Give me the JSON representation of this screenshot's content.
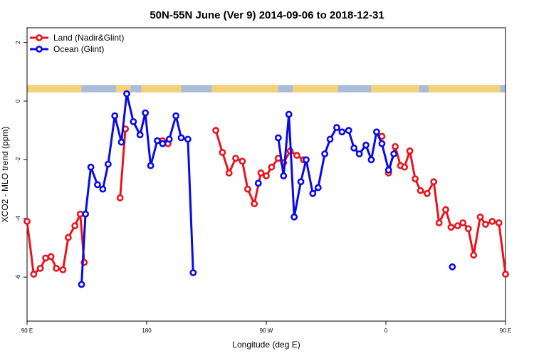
{
  "chart_data": {
    "type": "line",
    "title": "50N-55N June (Ver 9)   2014-09-06 to 2018-12-31",
    "xlabel": "Longitude (deg E)",
    "ylabel": "XCO2 - MLO trend (ppm)",
    "xlim": [
      90,
      450
    ],
    "ylim": [
      -7.5,
      2.5
    ],
    "x_ticks": [
      {
        "value": 90,
        "label": "90 E"
      },
      {
        "value": 180,
        "label": "180"
      },
      {
        "value": 270,
        "label": "90 W"
      },
      {
        "value": 360,
        "label": "0"
      },
      {
        "value": 450,
        "label": "90 E"
      },
      {
        "value": 540,
        "label": "180"
      }
    ],
    "y_ticks": [
      {
        "value": -6,
        "label": "-6"
      },
      {
        "value": -4,
        "label": "-4"
      },
      {
        "value": -2,
        "label": "-2"
      },
      {
        "value": 0,
        "label": "0"
      },
      {
        "value": 2,
        "label": "2"
      }
    ],
    "legend_position": "top-left",
    "land_ocean_strip": {
      "y_range": [
        0.3,
        0.55
      ],
      "land_color": "#f5d27a",
      "ocean_color": "#a9bdd9"
    },
    "series": [
      {
        "name": "Land (Nadir&Glint)",
        "color": "#e8141e",
        "segments": [
          [
            [
              90,
              -4.1
            ],
            [
              95,
              -5.9
            ],
            [
              100,
              -5.7
            ],
            [
              104,
              -5.35
            ],
            [
              108,
              -5.3
            ],
            [
              112,
              -5.7
            ],
            [
              117,
              -5.75
            ],
            [
              121,
              -4.65
            ],
            [
              126,
              -4.25
            ],
            [
              130,
              -3.85
            ],
            [
              133,
              -5.5
            ]
          ],
          [
            [
              160,
              -3.3
            ],
            [
              164,
              -0.95
            ]
          ],
          [
            [
              192,
              -1.35
            ],
            [
              196,
              -1.45
            ]
          ],
          [
            [
              232,
              -1.0
            ],
            [
              237,
              -1.75
            ],
            [
              242,
              -2.45
            ],
            [
              247,
              -1.95
            ],
            [
              252,
              -2.05
            ],
            [
              256,
              -3.0
            ],
            [
              261,
              -3.5
            ],
            [
              266,
              -2.45
            ],
            [
              270,
              -2.55
            ],
            [
              274,
              -2.25
            ],
            [
              279,
              -1.95
            ],
            [
              283,
              -2.1
            ],
            [
              288,
              -1.7
            ],
            [
              293,
              -1.85
            ],
            [
              298,
              -2.0
            ]
          ],
          [
            [
              357,
              -1.2
            ]
          ],
          [
            [
              362,
              -2.45
            ],
            [
              367,
              -1.55
            ],
            [
              371,
              -2.2
            ],
            [
              374,
              -2.25
            ],
            [
              378,
              -1.7
            ]
          ],
          [
            [
              378,
              -1.7
            ],
            [
              382,
              -2.65
            ],
            [
              386,
              -3.05
            ],
            [
              391,
              -3.15
            ],
            [
              396,
              -2.75
            ],
            [
              400,
              -4.15
            ],
            [
              405,
              -3.7
            ],
            [
              409,
              -4.3
            ],
            [
              414,
              -4.25
            ],
            [
              418,
              -4.15
            ],
            [
              422,
              -4.35
            ],
            [
              426,
              -5.25
            ],
            [
              431,
              -3.95
            ],
            [
              435,
              -4.2
            ],
            [
              440,
              -4.1
            ],
            [
              445,
              -4.15
            ],
            [
              450,
              -5.9
            ]
          ]
        ]
      },
      {
        "name": "Ocean (Glint)",
        "color": "#0a0ae8",
        "segments": [
          [
            [
              131,
              -6.25
            ],
            [
              134,
              -3.85
            ],
            [
              138,
              -2.25
            ],
            [
              143,
              -2.85
            ],
            [
              147,
              -3.0
            ],
            [
              151,
              -2.15
            ],
            [
              156,
              -0.5
            ],
            [
              161,
              -1.4
            ],
            [
              165,
              0.25
            ],
            [
              170,
              -0.7
            ],
            [
              175,
              -1.15
            ],
            [
              179,
              -0.4
            ],
            [
              183,
              -2.2
            ],
            [
              188,
              -1.35
            ],
            [
              192,
              -1.45
            ],
            [
              197,
              -1.3
            ],
            [
              202,
              -0.5
            ],
            [
              206,
              -1.25
            ],
            [
              211,
              -1.3
            ],
            [
              215,
              -5.85
            ]
          ],
          [
            [
              264,
              -2.8
            ]
          ],
          [
            [
              279,
              -1.25
            ],
            [
              283,
              -2.55
            ],
            [
              287,
              -0.45
            ],
            [
              291,
              -3.95
            ],
            [
              296,
              -2.75
            ],
            [
              300,
              -2.0
            ],
            [
              305,
              -3.15
            ],
            [
              309,
              -2.95
            ],
            [
              314,
              -1.8
            ],
            [
              318,
              -1.3
            ],
            [
              323,
              -0.9
            ],
            [
              327,
              -1.05
            ],
            [
              332,
              -1.0
            ],
            [
              336,
              -1.6
            ],
            [
              340,
              -1.8
            ],
            [
              345,
              -1.5
            ],
            [
              349,
              -2.0
            ],
            [
              353,
              -1.05
            ],
            [
              357,
              -1.45
            ],
            [
              362,
              -2.35
            ],
            [
              366,
              -1.8
            ]
          ],
          [
            [
              410,
              -5.65
            ]
          ]
        ]
      }
    ]
  }
}
